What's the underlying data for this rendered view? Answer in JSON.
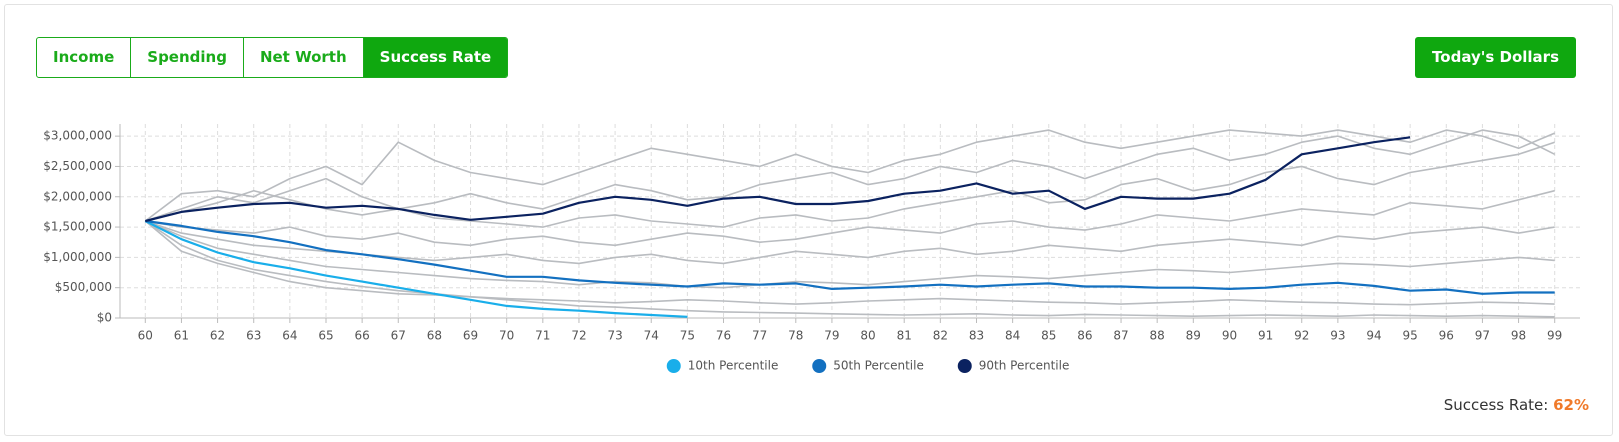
{
  "buttons": {
    "tabs": [
      "Income",
      "Spending",
      "Net Worth",
      "Success Rate"
    ],
    "active": 3,
    "toggle": "Today's Dollars"
  },
  "chart_data": {
    "type": "line",
    "grid": true,
    "x": [
      60,
      61,
      62,
      63,
      64,
      65,
      66,
      67,
      68,
      69,
      70,
      71,
      72,
      73,
      74,
      75,
      76,
      77,
      78,
      79,
      80,
      81,
      82,
      83,
      84,
      85,
      86,
      87,
      88,
      89,
      90,
      91,
      92,
      93,
      94,
      95,
      96,
      97,
      98,
      99
    ],
    "xlim": [
      59.3,
      99.7
    ],
    "xticks": [
      60,
      61,
      62,
      63,
      64,
      65,
      66,
      67,
      68,
      69,
      70,
      71,
      72,
      73,
      74,
      75,
      76,
      77,
      78,
      79,
      80,
      81,
      82,
      83,
      84,
      85,
      86,
      87,
      88,
      89,
      90,
      91,
      92,
      93,
      94,
      95,
      96,
      97,
      98,
      99
    ],
    "ylim": [
      0,
      3200000
    ],
    "yticks": [
      {
        "value": 0,
        "label": "$0"
      },
      {
        "value": 500000,
        "label": "$500,000"
      },
      {
        "value": 1000000,
        "label": "$1,000,000"
      },
      {
        "value": 1500000,
        "label": "$1,500,000"
      },
      {
        "value": 2000000,
        "label": "$2,000,000"
      },
      {
        "value": 2500000,
        "label": "$2,500,000"
      },
      {
        "value": 3000000,
        "label": "$3,000,000"
      }
    ],
    "simulations": [
      {
        "color": "#b9bcc0",
        "values": [
          1600000,
          2050000,
          2100000,
          2000000,
          2300000,
          2500000,
          2200000,
          2900000,
          2600000,
          2400000,
          2300000,
          2200000,
          2400000,
          2600000,
          2800000,
          2700000,
          2600000,
          2500000,
          2700000,
          2500000,
          2400000,
          2600000,
          2700000,
          2900000,
          3000000,
          3100000,
          2900000,
          2800000,
          2900000,
          3000000,
          3100000,
          3050000,
          3000000,
          3100000,
          3000000,
          2900000,
          3100000,
          3000000,
          2800000,
          3050000
        ]
      },
      {
        "color": "#b9bcc0",
        "values": [
          1600000,
          1750000,
          1900000,
          2100000,
          1950000,
          1800000,
          1700000,
          1800000,
          1650000,
          1600000,
          1550000,
          1500000,
          1650000,
          1700000,
          1600000,
          1550000,
          1500000,
          1650000,
          1700000,
          1600000,
          1650000,
          1800000,
          1900000,
          2000000,
          2100000,
          1900000,
          1950000,
          2200000,
          2300000,
          2100000,
          2200000,
          2400000,
          2500000,
          2300000,
          2200000,
          2400000,
          2500000,
          2600000,
          2700000,
          2900000
        ]
      },
      {
        "color": "#b9bcc0",
        "values": [
          1600000,
          1500000,
          1450000,
          1400000,
          1500000,
          1350000,
          1300000,
          1400000,
          1250000,
          1200000,
          1300000,
          1350000,
          1250000,
          1200000,
          1300000,
          1400000,
          1350000,
          1250000,
          1300000,
          1400000,
          1500000,
          1450000,
          1400000,
          1550000,
          1600000,
          1500000,
          1450000,
          1550000,
          1700000,
          1650000,
          1600000,
          1700000,
          1800000,
          1750000,
          1700000,
          1900000,
          1850000,
          1800000,
          1950000,
          2100000
        ]
      },
      {
        "color": "#b9bcc0",
        "values": [
          1600000,
          1400000,
          1300000,
          1200000,
          1150000,
          1100000,
          1050000,
          1000000,
          950000,
          1000000,
          1050000,
          950000,
          900000,
          1000000,
          1050000,
          950000,
          900000,
          1000000,
          1100000,
          1050000,
          1000000,
          1100000,
          1150000,
          1050000,
          1100000,
          1200000,
          1150000,
          1100000,
          1200000,
          1250000,
          1300000,
          1250000,
          1200000,
          1350000,
          1300000,
          1400000,
          1450000,
          1500000,
          1400000,
          1500000
        ]
      },
      {
        "color": "#b9bcc0",
        "values": [
          1600000,
          1350000,
          1150000,
          1050000,
          950000,
          850000,
          800000,
          750000,
          700000,
          650000,
          620000,
          600000,
          550000,
          600000,
          580000,
          520000,
          500000,
          550000,
          600000,
          580000,
          550000,
          600000,
          650000,
          700000,
          680000,
          650000,
          700000,
          750000,
          800000,
          780000,
          750000,
          800000,
          850000,
          900000,
          880000,
          850000,
          900000,
          950000,
          1000000,
          950000
        ]
      },
      {
        "color": "#b9bcc0",
        "values": [
          1600000,
          1200000,
          950000,
          800000,
          700000,
          600000,
          520000,
          450000,
          400000,
          350000,
          320000,
          300000,
          280000,
          250000,
          270000,
          300000,
          280000,
          250000,
          230000,
          250000,
          280000,
          300000,
          320000,
          300000,
          280000,
          260000,
          250000,
          230000,
          250000,
          270000,
          300000,
          280000,
          260000,
          250000,
          230000,
          220000,
          240000,
          260000,
          250000,
          230000
        ]
      },
      {
        "color": "#b9bcc0",
        "values": [
          1600000,
          1800000,
          2000000,
          1900000,
          2100000,
          2300000,
          2000000,
          1800000,
          1900000,
          2050000,
          1900000,
          1800000,
          2000000,
          2200000,
          2100000,
          1950000,
          2000000,
          2200000,
          2300000,
          2400000,
          2200000,
          2300000,
          2500000,
          2400000,
          2600000,
          2500000,
          2300000,
          2500000,
          2700000,
          2800000,
          2600000,
          2700000,
          2900000,
          3000000,
          2800000,
          2700000,
          2900000,
          3100000,
          3000000,
          2700000
        ]
      },
      {
        "color": "#b9bcc0",
        "values": [
          1600000,
          1100000,
          900000,
          750000,
          600000,
          500000,
          450000,
          400000,
          380000,
          350000,
          300000,
          250000,
          200000,
          180000,
          150000,
          120000,
          100000,
          90000,
          80000,
          70000,
          60000,
          50000,
          60000,
          70000,
          50000,
          40000,
          60000,
          50000,
          40000,
          30000,
          40000,
          50000,
          40000,
          30000,
          50000,
          40000,
          30000,
          40000,
          30000,
          20000
        ]
      }
    ],
    "series": [
      {
        "name": "10th Percentile",
        "color": "#19aeea",
        "values": [
          1600000,
          1300000,
          1080000,
          920000,
          820000,
          700000,
          600000,
          500000,
          400000,
          300000,
          200000,
          150000,
          120000,
          80000,
          50000,
          20000,
          null,
          null,
          null,
          null,
          null,
          null,
          null,
          null,
          null,
          null,
          null,
          null,
          null,
          null,
          null,
          null,
          null,
          null,
          null,
          null,
          null,
          null,
          null,
          null
        ]
      },
      {
        "name": "50th Percentile",
        "color": "#1370c0",
        "values": [
          1600000,
          1520000,
          1420000,
          1350000,
          1250000,
          1120000,
          1050000,
          970000,
          880000,
          780000,
          680000,
          680000,
          620000,
          580000,
          550000,
          520000,
          570000,
          550000,
          570000,
          480000,
          500000,
          520000,
          550000,
          520000,
          550000,
          570000,
          520000,
          520000,
          500000,
          500000,
          480000,
          500000,
          550000,
          580000,
          530000,
          450000,
          470000,
          400000,
          420000,
          420000
        ]
      },
      {
        "name": "90th Percentile",
        "color": "#0b2260",
        "values": [
          1600000,
          1750000,
          1820000,
          1880000,
          1900000,
          1820000,
          1850000,
          1800000,
          1700000,
          1620000,
          1670000,
          1720000,
          1900000,
          2000000,
          1950000,
          1850000,
          1970000,
          2000000,
          1880000,
          1880000,
          1930000,
          2050000,
          2100000,
          2220000,
          2050000,
          2100000,
          1800000,
          2000000,
          1970000,
          1970000,
          2050000,
          2280000,
          2700000,
          2800000,
          2900000,
          2980000,
          null,
          null,
          null,
          null
        ]
      }
    ]
  },
  "success_rate": {
    "label": "Success Rate:",
    "value": "62%"
  }
}
